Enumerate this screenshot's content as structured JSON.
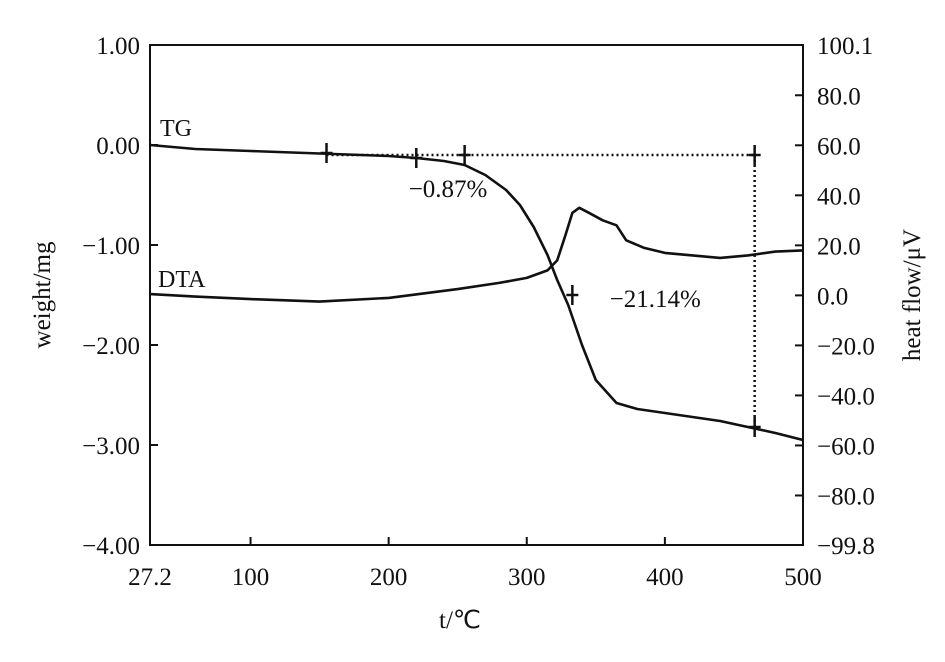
{
  "chart_data": {
    "type": "line",
    "title": "",
    "xlabel": "t/℃",
    "ylabel_left": "weight/mg",
    "ylabel_right": "heat flow/μV",
    "xlim": [
      27.2,
      500
    ],
    "ylim_left": [
      -4.0,
      1.0
    ],
    "ylim_right": [
      -99.8,
      100.1
    ],
    "x_ticks": [
      {
        "value": 27.2,
        "label": "27.2"
      },
      {
        "value": 100,
        "label": "100"
      },
      {
        "value": 200,
        "label": "200"
      },
      {
        "value": 300,
        "label": "300"
      },
      {
        "value": 400,
        "label": "400"
      },
      {
        "value": 500,
        "label": "500"
      }
    ],
    "y_left_ticks": [
      {
        "value": 1.0,
        "label": "1.00"
      },
      {
        "value": 0.0,
        "label": "0.00"
      },
      {
        "value": -1.0,
        "label": "−1.00"
      },
      {
        "value": -2.0,
        "label": "−2.00"
      },
      {
        "value": -3.0,
        "label": "−3.00"
      },
      {
        "value": -4.0,
        "label": "−4.00"
      }
    ],
    "y_right_ticks": [
      {
        "value": 100.1,
        "label": "100.1"
      },
      {
        "value": 80.0,
        "label": "80.0"
      },
      {
        "value": 60.0,
        "label": "60.0"
      },
      {
        "value": 40.0,
        "label": "40.0"
      },
      {
        "value": 20.0,
        "label": "20.0"
      },
      {
        "value": 0.0,
        "label": "0.0"
      },
      {
        "value": -20.0,
        "label": "−20.0"
      },
      {
        "value": -40.0,
        "label": "−40.0"
      },
      {
        "value": -60.0,
        "label": "−60.0"
      },
      {
        "value": -80.0,
        "label": "−80.0"
      },
      {
        "value": -99.8,
        "label": "−99.8"
      }
    ],
    "series": [
      {
        "name": "TG",
        "axis": "left",
        "x": [
          27.2,
          60,
          100,
          140,
          180,
          200,
          220,
          240,
          255,
          270,
          285,
          295,
          305,
          315,
          322,
          330,
          340,
          350,
          365,
          380,
          400,
          420,
          440,
          460,
          480,
          500
        ],
        "y": [
          0.0,
          -0.04,
          -0.06,
          -0.08,
          -0.1,
          -0.11,
          -0.13,
          -0.16,
          -0.2,
          -0.3,
          -0.45,
          -0.6,
          -0.82,
          -1.1,
          -1.35,
          -1.6,
          -2.0,
          -2.35,
          -2.58,
          -2.64,
          -2.68,
          -2.72,
          -2.76,
          -2.82,
          -2.88,
          -2.95
        ]
      },
      {
        "name": "DTA",
        "axis": "right",
        "x": [
          27.2,
          60,
          100,
          150,
          200,
          250,
          280,
          300,
          315,
          322,
          328,
          333,
          338,
          345,
          355,
          365,
          372,
          385,
          400,
          420,
          440,
          460,
          480,
          500
        ],
        "y": [
          0.5,
          -0.5,
          -1.5,
          -2.5,
          -1.0,
          2.5,
          5.0,
          7.0,
          10.0,
          14.0,
          24.0,
          33.0,
          35.0,
          33.0,
          30.0,
          28.0,
          22.0,
          19.0,
          17.0,
          16.0,
          15.0,
          16.0,
          17.5,
          18.0
        ]
      }
    ],
    "guides": {
      "tg_baseline_y": -0.1,
      "tg_baseline_from_x": 155,
      "tg_baseline_to_x": 465,
      "vertical_line_x": 465,
      "markers": [
        {
          "x": 155,
          "y": -0.08
        },
        {
          "x": 220,
          "y": -0.13
        },
        {
          "x": 255,
          "y": -0.1
        },
        {
          "x": 465,
          "y": -0.1
        },
        {
          "x": 333,
          "y": -1.5
        },
        {
          "x": 465,
          "y": -2.82
        }
      ]
    },
    "annotations": [
      {
        "text": "−0.87%",
        "x": 243,
        "y": -0.52
      },
      {
        "text": "−21.14%",
        "x": 393,
        "y": -1.62
      }
    ],
    "grid": false,
    "legend": "none"
  }
}
